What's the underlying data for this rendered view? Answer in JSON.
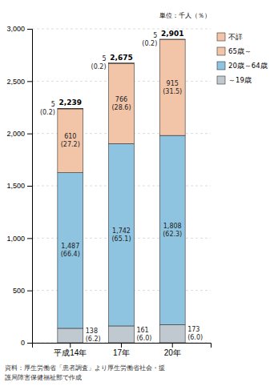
{
  "chart_data": {
    "type": "bar",
    "stacked": true,
    "data_labels": true,
    "grid": true,
    "legend": "right",
    "ylabel": "単位：千人（％）",
    "footnote": [
      "資料：厚生労働省「患者調査」より厚生労働省社会・援",
      "護局障害保健福祉部で作成"
    ],
    "categories": [
      "平成14年",
      "17年",
      "20年"
    ],
    "series": [
      {
        "name": "～19歳",
        "color": "#c0c8d0",
        "values": [
          138,
          161,
          173
        ],
        "shares": [
          6.2,
          6.0,
          6.0
        ],
        "share_labels": [
          "(6.2)",
          "(6.0)",
          "(6.0)"
        ]
      },
      {
        "name": "20歳～64歳",
        "color": "#8ec4e0",
        "values": [
          1487,
          1742,
          1808
        ],
        "value_labels": [
          "1,487",
          "1,742",
          "1,808"
        ],
        "shares": [
          66.4,
          65.1,
          62.3
        ],
        "share_labels": [
          "(66.4)",
          "(65.1)",
          "(62.3)"
        ]
      },
      {
        "name": "65歳～",
        "color": "#f2c4a8",
        "values": [
          610,
          766,
          915
        ],
        "shares": [
          27.2,
          28.6,
          31.5
        ],
        "share_labels": [
          "(27.2)",
          "(28.6)",
          "(31.5)"
        ]
      },
      {
        "name": "不詳",
        "color": "#f2c4a8",
        "values": [
          5,
          5,
          5
        ],
        "shares": [
          0.2,
          0.2,
          0.2
        ],
        "share_labels": [
          "(0.2)",
          "(0.2)",
          "(0.2)"
        ]
      }
    ],
    "totals": [
      2239,
      2675,
      2901
    ],
    "total_labels": [
      "2,239",
      "2,675",
      "2,901"
    ],
    "ylim": [
      0,
      3000
    ],
    "yticks": [
      0,
      500,
      {
        "value": 1000,
        "label": "1,000"
      },
      {
        "value": 1500,
        "label": "1,500"
      },
      {
        "value": 2000,
        "label": "2,000"
      },
      {
        "value": 2500,
        "label": "2,500"
      },
      {
        "value": 3000,
        "label": "3,000"
      }
    ]
  }
}
